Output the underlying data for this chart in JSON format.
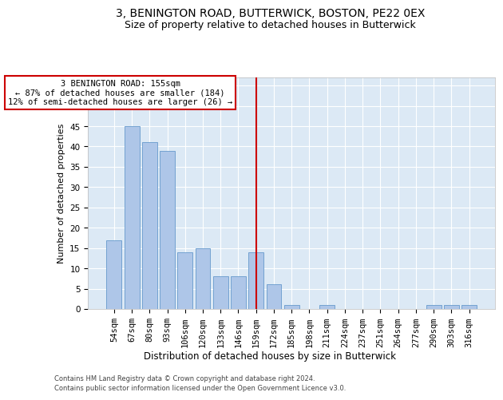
{
  "title": "3, BENINGTON ROAD, BUTTERWICK, BOSTON, PE22 0EX",
  "subtitle": "Size of property relative to detached houses in Butterwick",
  "xlabel": "Distribution of detached houses by size in Butterwick",
  "ylabel": "Number of detached properties",
  "categories": [
    "54sqm",
    "67sqm",
    "80sqm",
    "93sqm",
    "106sqm",
    "120sqm",
    "133sqm",
    "146sqm",
    "159sqm",
    "172sqm",
    "185sqm",
    "198sqm",
    "211sqm",
    "224sqm",
    "237sqm",
    "251sqm",
    "264sqm",
    "277sqm",
    "290sqm",
    "303sqm",
    "316sqm"
  ],
  "values": [
    17,
    45,
    41,
    39,
    14,
    15,
    8,
    8,
    14,
    6,
    1,
    0,
    1,
    0,
    0,
    0,
    0,
    0,
    1,
    1,
    1
  ],
  "bar_color": "#aec6e8",
  "bar_edge_color": "#6699cc",
  "marker_line_index": 8,
  "marker_line_color": "#cc0000",
  "annotation_text": "3 BENINGTON ROAD: 155sqm\n← 87% of detached houses are smaller (184)\n12% of semi-detached houses are larger (26) →",
  "annotation_box_color": "#cc0000",
  "ylim": [
    0,
    57
  ],
  "yticks": [
    0,
    5,
    10,
    15,
    20,
    25,
    30,
    35,
    40,
    45,
    50,
    55
  ],
  "plot_bg_color": "#dce9f5",
  "footer_line1": "Contains HM Land Registry data © Crown copyright and database right 2024.",
  "footer_line2": "Contains public sector information licensed under the Open Government Licence v3.0.",
  "title_fontsize": 10,
  "subtitle_fontsize": 9,
  "xlabel_fontsize": 8.5,
  "ylabel_fontsize": 8,
  "tick_fontsize": 7.5,
  "annotation_fontsize": 7.5
}
